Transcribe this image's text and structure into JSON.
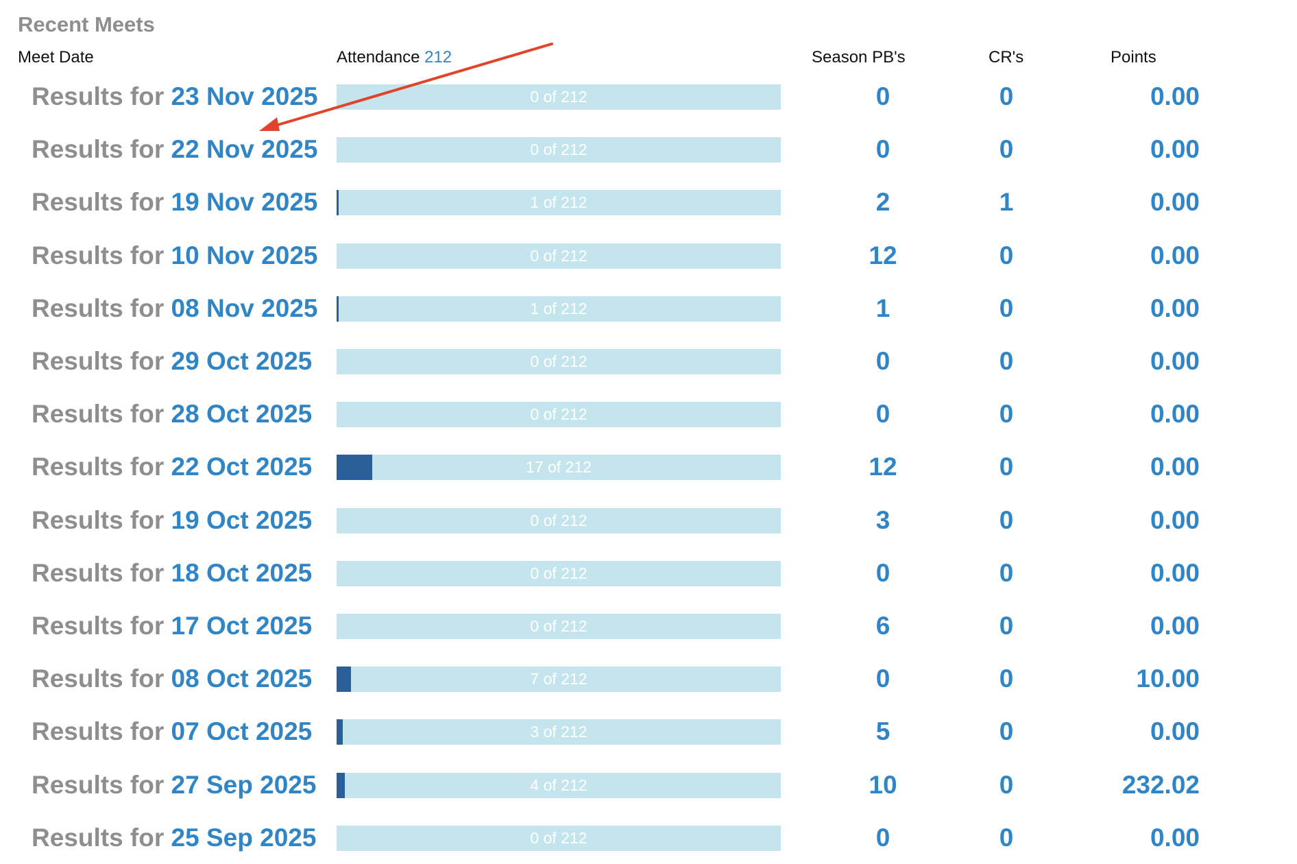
{
  "section_title": "Recent Meets",
  "headers": {
    "meet_date": "Meet Date",
    "attendance": "Attendance",
    "attendance_total": "212",
    "season_pbs": "Season PB's",
    "crs": "CR's",
    "points": "Points"
  },
  "results_prefix": "Results for",
  "total_athletes": 212,
  "colors": {
    "link_blue": "#2f85c6",
    "grey_text": "#8e8e8e",
    "bar_bg": "#c5e5ee",
    "bar_fill": "#2b5f9a",
    "annotation_arrow": "#e0442a"
  },
  "meets": [
    {
      "date": "23 Nov 2025",
      "attended": 1e-09,
      "attendance_label": "0 of 212",
      "season_pbs": "0",
      "crs": "0",
      "points": "0.00"
    },
    {
      "date": "22 Nov 2025",
      "attended": 0,
      "attendance_label": "0 of 212",
      "season_pbs": "0",
      "crs": "0",
      "points": "0.00"
    },
    {
      "date": "19 Nov 2025",
      "attended": 1,
      "attendance_label": "1 of 212",
      "season_pbs": "2",
      "crs": "1",
      "points": "0.00"
    },
    {
      "date": "10 Nov 2025",
      "attended": 0,
      "attendance_label": "0 of 212",
      "season_pbs": "12",
      "crs": "0",
      "points": "0.00"
    },
    {
      "date": "08 Nov 2025",
      "attended": 1,
      "attendance_label": "1 of 212",
      "season_pbs": "1",
      "crs": "0",
      "points": "0.00"
    },
    {
      "date": "29 Oct 2025",
      "attended": 0,
      "attendance_label": "0 of 212",
      "season_pbs": "0",
      "crs": "0",
      "points": "0.00"
    },
    {
      "date": "28 Oct 2025",
      "attended": 0,
      "attendance_label": "0 of 212",
      "season_pbs": "0",
      "crs": "0",
      "points": "0.00"
    },
    {
      "date": "22 Oct 2025",
      "attended": 17,
      "attendance_label": "17 of 212",
      "season_pbs": "12",
      "crs": "0",
      "points": "0.00"
    },
    {
      "date": "19 Oct 2025",
      "attended": 0,
      "attendance_label": "0 of 212",
      "season_pbs": "3",
      "crs": "0",
      "points": "0.00"
    },
    {
      "date": "18 Oct 2025",
      "attended": 0,
      "attendance_label": "0 of 212",
      "season_pbs": "0",
      "crs": "0",
      "points": "0.00"
    },
    {
      "date": "17 Oct 2025",
      "attended": 0,
      "attendance_label": "0 of 212",
      "season_pbs": "6",
      "crs": "0",
      "points": "0.00"
    },
    {
      "date": "08 Oct 2025",
      "attended": 7,
      "attendance_label": "7 of 212",
      "season_pbs": "0",
      "crs": "0",
      "points": "10.00"
    },
    {
      "date": "07 Oct 2025",
      "attended": 3,
      "attendance_label": "3 of 212",
      "season_pbs": "5",
      "crs": "0",
      "points": "0.00"
    },
    {
      "date": "27 Sep 2025",
      "attended": 4,
      "attendance_label": "4 of 212",
      "season_pbs": "10",
      "crs": "0",
      "points": "232.02"
    },
    {
      "date": "25 Sep 2025",
      "attended": 0,
      "attendance_label": "0 of 212",
      "season_pbs": "0",
      "crs": "0",
      "points": "0.00"
    }
  ]
}
